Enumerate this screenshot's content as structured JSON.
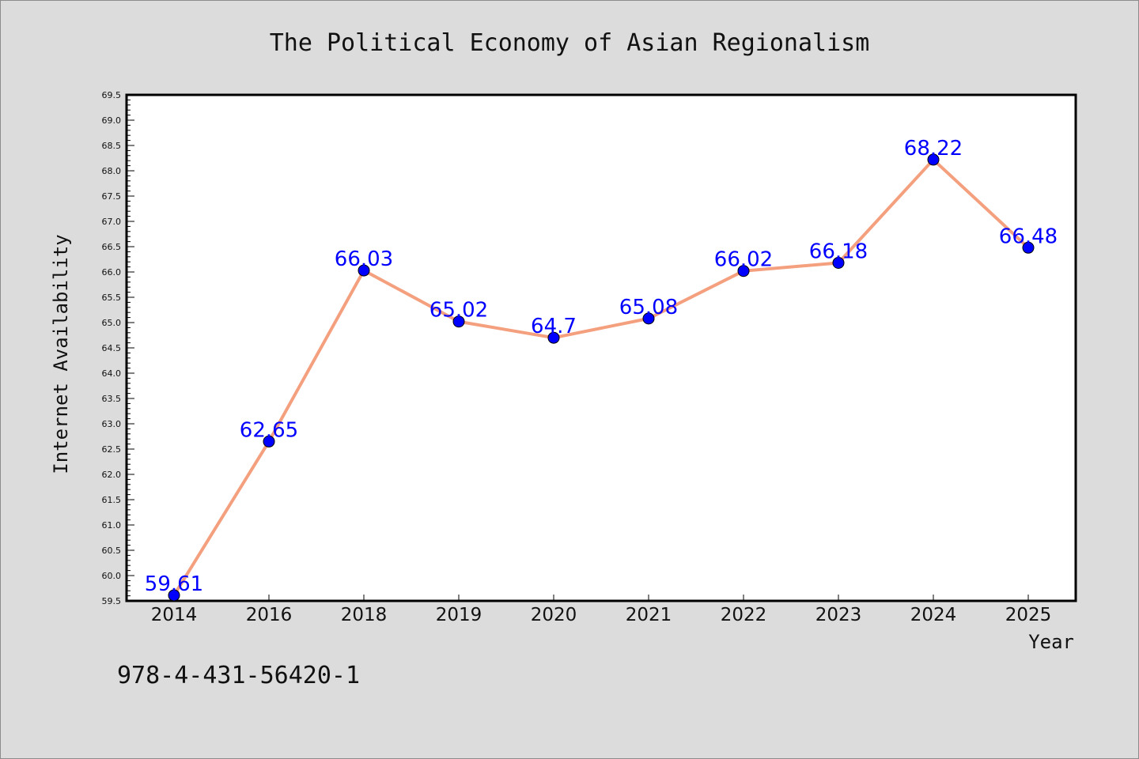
{
  "chart_data": {
    "type": "line",
    "title": "The Political Economy of Asian Regionalism",
    "xlabel": "Year",
    "ylabel": "Internet Availability",
    "categories": [
      "2014",
      "2016",
      "2018",
      "2019",
      "2020",
      "2021",
      "2022",
      "2023",
      "2024",
      "2025"
    ],
    "series": [
      {
        "values": [
          59.61,
          62.65,
          66.03,
          65.02,
          64.7,
          65.08,
          66.02,
          66.18,
          68.22,
          66.48
        ],
        "labels": [
          "59.61",
          "62.65",
          "66.03",
          "65.02",
          "64.7",
          "65.08",
          "66.02",
          "66.18",
          "68.22",
          "66.48"
        ],
        "line_color": "#f4a07f",
        "marker_color": "#0000ff"
      }
    ],
    "ylim": [
      59.5,
      69.5
    ],
    "ytick_step": 0.5,
    "grid": false,
    "legend": "none"
  },
  "footer": {
    "isbn": "978-4-431-56420-1"
  },
  "colors": {
    "background": "#dcdcdc",
    "plot_background": "#ffffff",
    "text": "#111111"
  }
}
